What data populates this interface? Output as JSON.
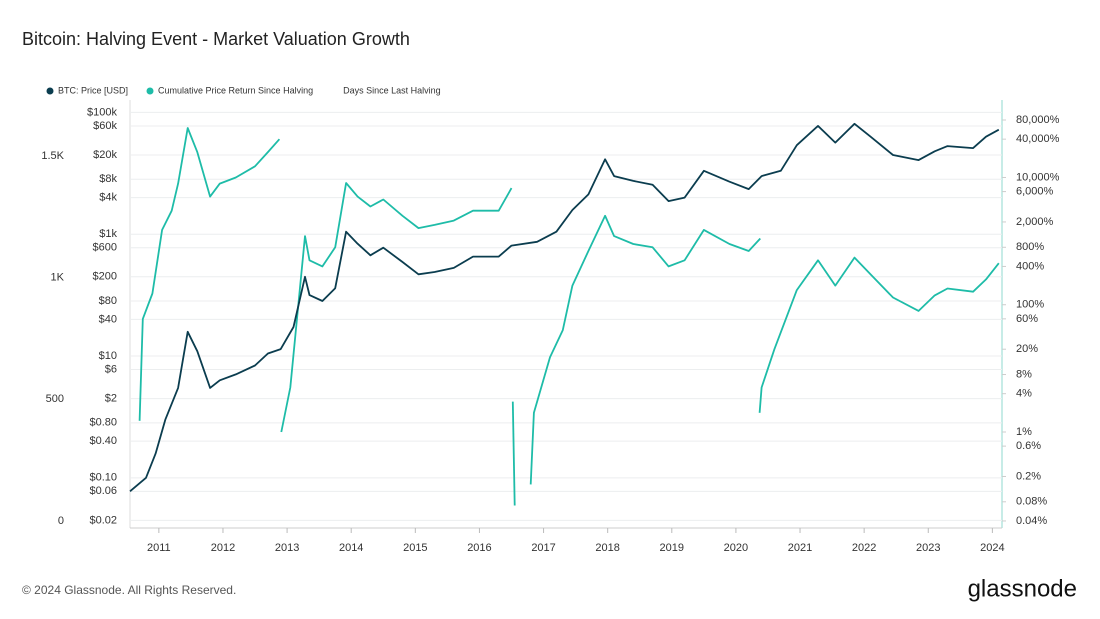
{
  "chart_data": {
    "type": "line",
    "title": "Bitcoin: Halving Event - Market Valuation Growth",
    "footer": "© 2024 Glassnode. All Rights Reserved.",
    "brand": "glassnode",
    "xlim": [
      2010.55,
      2024.15
    ],
    "xticks": [
      2011,
      2012,
      2013,
      2014,
      2015,
      2016,
      2017,
      2018,
      2019,
      2020,
      2021,
      2022,
      2023,
      2024
    ],
    "log_y": true,
    "ylim": [
      0.015,
      160000
    ],
    "yticks": [
      {
        "value": 0.02,
        "label": "$0.02"
      },
      {
        "value": 0.06,
        "label": "$0.06"
      },
      {
        "value": 0.1,
        "label": "$0.10"
      },
      {
        "value": 0.4,
        "label": "$0.40"
      },
      {
        "value": 0.8,
        "label": "$0.80"
      },
      {
        "value": 2,
        "label": "$2"
      },
      {
        "value": 6,
        "label": "$6"
      },
      {
        "value": 10,
        "label": "$10"
      },
      {
        "value": 40,
        "label": "$40"
      },
      {
        "value": 80,
        "label": "$80"
      },
      {
        "value": 200,
        "label": "$200"
      },
      {
        "value": 600,
        "label": "$600"
      },
      {
        "value": 1000,
        "label": "$1k"
      },
      {
        "value": 4000,
        "label": "$4k"
      },
      {
        "value": 8000,
        "label": "$8k"
      },
      {
        "value": 20000,
        "label": "$20k"
      },
      {
        "value": 60000,
        "label": "$60k"
      },
      {
        "value": 100000,
        "label": "$100k"
      }
    ],
    "log_y2": true,
    "y2lim": [
      0.031,
      165000
    ],
    "y2ticks": [
      {
        "value": 0.04,
        "label": "0.04%"
      },
      {
        "value": 0.08,
        "label": "0.08%"
      },
      {
        "value": 0.2,
        "label": "0.2%"
      },
      {
        "value": 0.6,
        "label": "0.6%"
      },
      {
        "value": 1,
        "label": "1%"
      },
      {
        "value": 4,
        "label": "4%"
      },
      {
        "value": 8,
        "label": "8%"
      },
      {
        "value": 20,
        "label": "20%"
      },
      {
        "value": 60,
        "label": "60%"
      },
      {
        "value": 100,
        "label": "100%"
      },
      {
        "value": 400,
        "label": "400%"
      },
      {
        "value": 800,
        "label": "800%"
      },
      {
        "value": 2000,
        "label": "2,000%"
      },
      {
        "value": 6000,
        "label": "6,000%"
      },
      {
        "value": 10000,
        "label": "10,000%"
      },
      {
        "value": 40000,
        "label": "40,000%"
      },
      {
        "value": 80000,
        "label": "80,000%"
      }
    ],
    "y3lim": [
      -29,
      1730
    ],
    "y3ticks": [
      0,
      500,
      {
        "value": 1000,
        "label": "1K"
      },
      {
        "value": 1500,
        "label": "1.5K"
      }
    ],
    "grid": true,
    "legend": "top-left",
    "hidden_series": [
      "Days Since Last Halving"
    ],
    "series": [
      {
        "name": "BTC: Price [USD]",
        "color": "#0b3d4f",
        "x": [
          2010.55,
          2010.8,
          2010.95,
          2011.1,
          2011.3,
          2011.45,
          2011.6,
          2011.8,
          2011.95,
          2012.2,
          2012.5,
          2012.7,
          2012.9,
          2013.1,
          2013.28,
          2013.35,
          2013.55,
          2013.75,
          2013.92,
          2014.1,
          2014.3,
          2014.5,
          2014.8,
          2015.05,
          2015.3,
          2015.6,
          2015.9,
          2016.3,
          2016.5,
          2016.9,
          2017.2,
          2017.45,
          2017.7,
          2017.96,
          2018.1,
          2018.4,
          2018.7,
          2018.95,
          2019.2,
          2019.5,
          2019.9,
          2020.2,
          2020.4,
          2020.7,
          2020.95,
          2021.28,
          2021.55,
          2021.85,
          2022.1,
          2022.45,
          2022.85,
          2023.1,
          2023.3,
          2023.7,
          2023.9,
          2024.1
        ],
        "values": [
          0.06,
          0.1,
          0.25,
          0.9,
          3,
          25,
          12,
          3,
          4,
          5,
          7,
          11,
          13,
          30,
          200,
          100,
          80,
          130,
          1100,
          700,
          450,
          600,
          350,
          220,
          240,
          280,
          430,
          430,
          650,
          750,
          1100,
          2500,
          4500,
          17000,
          9000,
          7500,
          6500,
          3500,
          4000,
          11000,
          7300,
          5500,
          9000,
          11000,
          29000,
          60000,
          32000,
          65000,
          40000,
          20000,
          16500,
          23000,
          28000,
          26000,
          40000,
          52000
        ]
      },
      {
        "name": "Cumulative Price Return Since Halving",
        "color": "#1ebca8",
        "axis": "y2",
        "x": [
          2010.7,
          2010.75,
          2010.9,
          2011.05,
          2011.2,
          2011.3,
          2011.45,
          2011.6,
          2011.8,
          2011.95,
          2012.2,
          2012.5,
          2012.7,
          2012.88,
          2012.9,
          2012.91,
          2013.05,
          2013.28,
          2013.35,
          2013.55,
          2013.75,
          2013.92,
          2014.1,
          2014.3,
          2014.5,
          2014.8,
          2015.05,
          2015.3,
          2015.6,
          2015.9,
          2016.3,
          2016.5,
          2016.51,
          2016.52,
          2016.55,
          2016.6,
          2016.8,
          2016.85,
          2017.1,
          2017.3,
          2017.45,
          2017.7,
          2017.96,
          2018.1,
          2018.4,
          2018.7,
          2018.95,
          2019.2,
          2019.5,
          2019.9,
          2020.2,
          2020.38,
          2020.39,
          2020.37,
          2020.4,
          2020.6,
          2020.95,
          2021.28,
          2021.55,
          2021.85,
          2022.1,
          2022.45,
          2022.85,
          2023.1,
          2023.3,
          2023.7,
          2023.9,
          2024.1
        ],
        "values": [
          1.5,
          60,
          150,
          1500,
          3000,
          8000,
          60000,
          25000,
          5000,
          8000,
          10000,
          15000,
          25000,
          40000,
          null,
          1,
          5,
          1200,
          500,
          400,
          800,
          8200,
          5000,
          3500,
          4500,
          2500,
          1600,
          1800,
          2100,
          3000,
          3000,
          6800,
          null,
          3,
          0.07,
          null,
          0.15,
          2,
          15,
          40,
          200,
          700,
          2500,
          1200,
          900,
          800,
          400,
          500,
          1500,
          900,
          700,
          1100,
          null,
          2,
          5,
          20,
          170,
          500,
          200,
          550,
          300,
          130,
          80,
          140,
          180,
          160,
          250,
          450
        ]
      }
    ]
  }
}
